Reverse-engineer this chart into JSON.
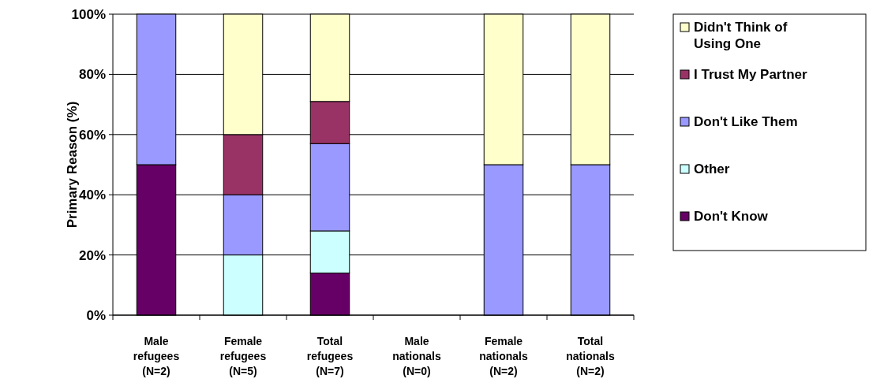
{
  "chart_data": {
    "type": "bar",
    "stacked": true,
    "ylabel": "Primary Reason (%)",
    "categories": [
      "Male\nrefugees\n(N=2)",
      "Female\nrefugees\n(N=5)",
      "Total\nrefugees\n(N=7)",
      "Male\nnationals\n(N=0)",
      "Female\nnationals\n(N=2)",
      "Total\nnationals\n(N=2)"
    ],
    "series": [
      {
        "name": "Don't Know",
        "color": "#660066",
        "values": [
          50,
          0,
          14,
          null,
          0,
          0
        ]
      },
      {
        "name": "Other",
        "color": "#ccffff",
        "values": [
          0,
          20,
          14,
          null,
          0,
          0
        ]
      },
      {
        "name": "Don't Like Them",
        "color": "#9999ff",
        "values": [
          50,
          20,
          29,
          null,
          50,
          50
        ]
      },
      {
        "name": "I Trust My Partner",
        "color": "#993366",
        "values": [
          0,
          20,
          14,
          null,
          0,
          0
        ]
      },
      {
        "name": "Didn't Think of Using One",
        "color": "#ffffcc",
        "values": [
          0,
          40,
          29,
          null,
          50,
          50
        ]
      }
    ],
    "ylim": [
      0,
      100
    ],
    "yticks": [
      {
        "value": 0,
        "label": "0%"
      },
      {
        "value": 20,
        "label": "20%"
      },
      {
        "value": 40,
        "label": "40%"
      },
      {
        "value": 60,
        "label": "60%"
      },
      {
        "value": 80,
        "label": "80%"
      },
      {
        "value": 100,
        "label": "100%"
      }
    ],
    "grid": "y",
    "legend": "right"
  }
}
